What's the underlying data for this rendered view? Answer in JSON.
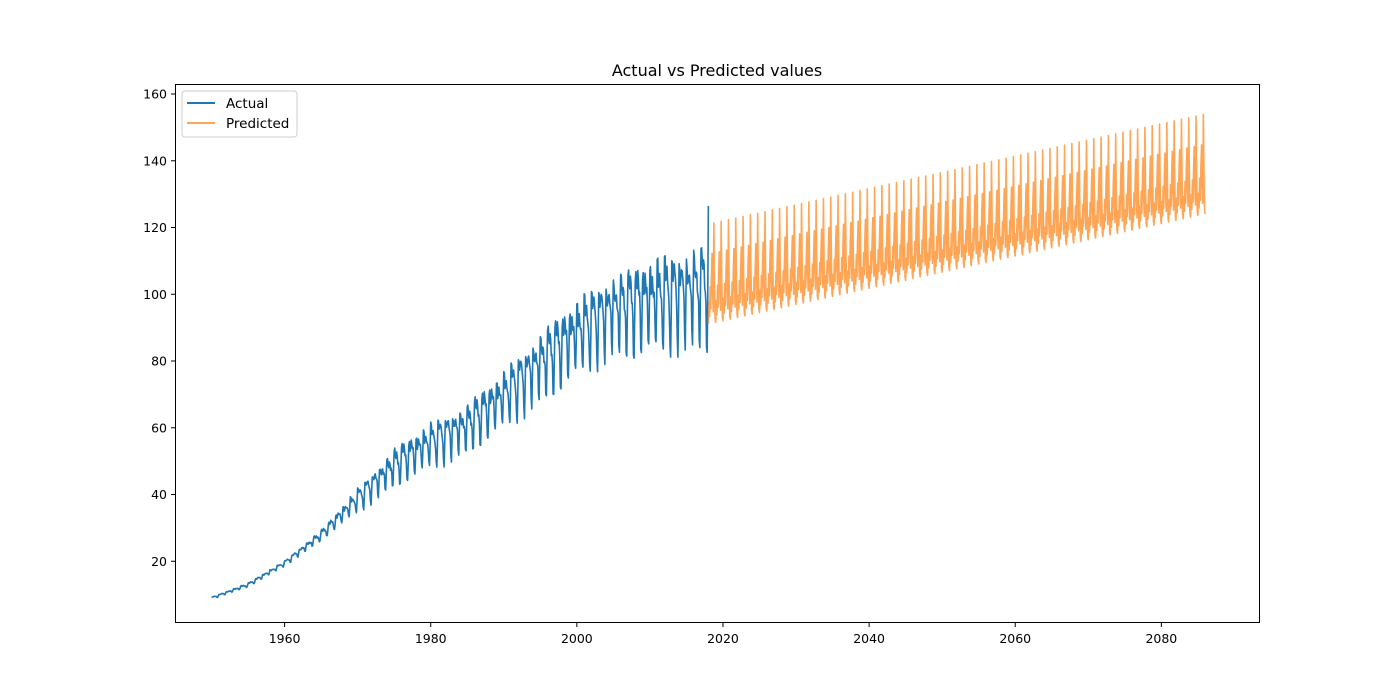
{
  "chart_data": {
    "type": "line",
    "title": "Actual vs Predicted values",
    "xlabel": "",
    "ylabel": "",
    "xlim": [
      1945,
      2093.5
    ],
    "ylim": [
      1.5,
      163
    ],
    "xticks": [
      1960,
      1980,
      2000,
      2020,
      2040,
      2060,
      2080
    ],
    "yticks": [
      20,
      40,
      60,
      80,
      100,
      120,
      140,
      160
    ],
    "grid": false,
    "legend": {
      "position": "top-left"
    },
    "series": [
      {
        "name": "Actual",
        "color": "#1f77b4",
        "opacity": 1,
        "x_start": 1950.0,
        "x_step": 0.08333,
        "points": 817,
        "trend_knots": [
          [
            1950,
            9
          ],
          [
            1955,
            13
          ],
          [
            1960,
            19.5
          ],
          [
            1965,
            28
          ],
          [
            1970,
            39
          ],
          [
            1975,
            49
          ],
          [
            1980,
            56
          ],
          [
            1985,
            61
          ],
          [
            1990,
            70
          ],
          [
            1995,
            80
          ],
          [
            2000,
            89
          ],
          [
            2005,
            96
          ],
          [
            2010,
            99
          ],
          [
            2015,
            101
          ],
          [
            2018,
            103
          ]
        ],
        "amp_knots": [
          [
            1950,
            0.4
          ],
          [
            1960,
            0.9
          ],
          [
            1966,
            2
          ],
          [
            1970,
            4
          ],
          [
            1975,
            6.5
          ],
          [
            1980,
            7.5
          ],
          [
            1985,
            8.5
          ],
          [
            1990,
            9.5
          ],
          [
            1995,
            12
          ],
          [
            2000,
            13
          ],
          [
            2005,
            14
          ],
          [
            2010,
            16
          ],
          [
            2015,
            17
          ],
          [
            2018,
            18
          ]
        ],
        "last_value": 126.5
      },
      {
        "name": "Predicted",
        "color": "#ff7f0e",
        "opacity": 0.7,
        "x_start": 2018.0,
        "x_step": 0.08333,
        "points": 817,
        "trend_knots": [
          [
            2018,
            100
          ],
          [
            2086,
            134
          ]
        ],
        "low_knots": [
          [
            2018,
            90
          ],
          [
            2086,
            123
          ]
        ],
        "high_knots": [
          [
            2018,
            121
          ],
          [
            2086,
            154
          ]
        ],
        "second_peak_knots": [
          [
            2018,
            112
          ],
          [
            2086,
            145
          ]
        ]
      }
    ]
  }
}
